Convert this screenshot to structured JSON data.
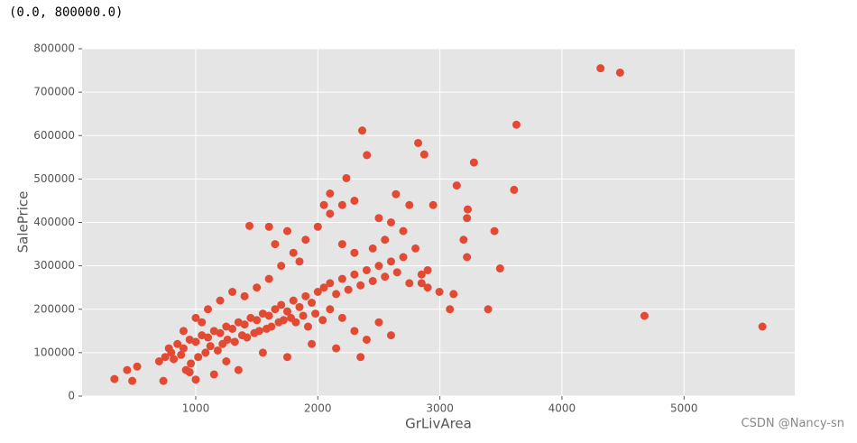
{
  "output_text": "(0.0, 800000.0)",
  "watermark": "CSDN @Nancy-sn",
  "chart_data": {
    "type": "scatter",
    "xlabel": "GrLivArea",
    "ylabel": "SalePrice",
    "color": "#E24A33",
    "grid": true,
    "xlim": [
      69,
      5907
    ],
    "xticks": [
      1000,
      2000,
      3000,
      4000,
      5000
    ],
    "ylim": [
      0,
      800000
    ],
    "yticks": [
      0,
      100000,
      200000,
      300000,
      400000,
      500000,
      600000,
      700000,
      800000
    ],
    "x": [
      800,
      850,
      900,
      950,
      1000,
      1050,
      1100,
      1150,
      1200,
      1250,
      1300,
      1350,
      1400,
      1450,
      1500,
      1550,
      1600,
      1650,
      1700,
      1750,
      1800,
      1850,
      1900,
      1950,
      2000,
      2050,
      2100,
      2150,
      2200,
      2250,
      2300,
      2350,
      2400,
      2450,
      2500,
      2550,
      2600,
      2650,
      2700,
      2750,
      2800,
      2850,
      2900,
      700,
      750,
      780,
      820,
      880,
      920,
      960,
      1020,
      1080,
      1120,
      1180,
      1220,
      1260,
      1320,
      1380,
      1420,
      1480,
      1520,
      1580,
      1620,
      1680,
      1720,
      1780,
      1820,
      1880,
      1920,
      1980,
      2040,
      2100,
      2200,
      2300,
      2400,
      2500,
      2600,
      2350,
      2150,
      1950,
      1750,
      1550,
      1350,
      1150,
      950,
      1250,
      1200,
      1300,
      1400,
      1500,
      1600,
      1700,
      1800,
      1900,
      2000,
      2050,
      2100,
      1750,
      1650,
      1850,
      2200,
      2300,
      2450,
      2550,
      2600,
      2700,
      2750,
      2850,
      2900,
      2200,
      2300,
      2500,
      1600,
      1100,
      1000,
      900,
      1050,
      4316,
      4476,
      4676,
      5642,
      3627,
      2364,
      2822,
      2872,
      2402,
      3279,
      2234,
      3138,
      3608,
      2640,
      2100,
      3228,
      3222,
      3447,
      3194,
      3222,
      3493,
      3395,
      3082,
      3112,
      2945,
      2996,
      1440,
      334,
      480,
      520,
      438,
      735,
      1000
    ],
    "values": [
      100000,
      120000,
      110000,
      130000,
      125000,
      140000,
      135000,
      150000,
      145000,
      160000,
      155000,
      170000,
      165000,
      180000,
      175000,
      190000,
      185000,
      200000,
      210000,
      195000,
      220000,
      205000,
      230000,
      215000,
      240000,
      250000,
      260000,
      235000,
      270000,
      245000,
      280000,
      255000,
      290000,
      265000,
      300000,
      275000,
      310000,
      285000,
      320000,
      260000,
      340000,
      280000,
      290000,
      80000,
      90000,
      110000,
      85000,
      95000,
      60000,
      75000,
      90000,
      100000,
      115000,
      105000,
      120000,
      130000,
      125000,
      140000,
      135000,
      145000,
      150000,
      155000,
      160000,
      170000,
      175000,
      180000,
      170000,
      185000,
      160000,
      190000,
      175000,
      200000,
      180000,
      150000,
      130000,
      170000,
      140000,
      90000,
      110000,
      120000,
      90000,
      100000,
      60000,
      50000,
      55000,
      80000,
      220000,
      240000,
      230000,
      250000,
      270000,
      300000,
      330000,
      360000,
      390000,
      440000,
      420000,
      380000,
      350000,
      310000,
      350000,
      330000,
      340000,
      360000,
      400000,
      380000,
      440000,
      260000,
      250000,
      440000,
      450000,
      410000,
      390000,
      200000,
      180000,
      150000,
      170000,
      755000,
      745000,
      184750,
      160000,
      625000,
      611657,
      582933,
      556581,
      555000,
      538000,
      501837,
      485000,
      475000,
      465000,
      466500,
      430000,
      410000,
      380000,
      360000,
      320000,
      294000,
      200000,
      200000,
      235000,
      440000,
      240000,
      392000,
      39300,
      35000,
      68000,
      60000,
      35000,
      38000
    ]
  }
}
